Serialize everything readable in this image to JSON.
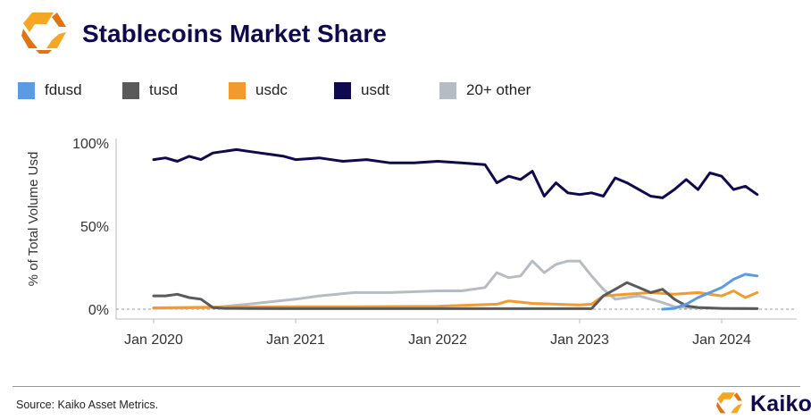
{
  "header": {
    "title": "Stablecoins Market Share",
    "logo_icon": "kaiko-logo-icon"
  },
  "footer": {
    "source": "Source: Kaiko Asset Metrics.",
    "brand": "Kaiko"
  },
  "colors": {
    "fdusd": "#5b9be6",
    "tusd": "#5a5a5a",
    "usdc": "#f39a2e",
    "usdt": "#0e0a4d",
    "other": "#b6bcc3",
    "logo_orange": "#f5a623",
    "logo_dark_orange": "#e27312"
  },
  "chart_data": {
    "type": "line",
    "title": "",
    "xlabel": "",
    "ylabel": "% of Total Volume Usd",
    "x_ticks": [
      "Jan 2020",
      "Jan 2021",
      "Jan 2022",
      "Jan 2023",
      "Jan 2024"
    ],
    "y_ticks": [
      "100%",
      "50%",
      "0%"
    ],
    "ylim": [
      0,
      100
    ],
    "xlim": [
      "2020-01",
      "2024-05"
    ],
    "grid": false,
    "legend_position": "top",
    "series": [
      {
        "name": "fdusd",
        "key": "fdusd",
        "points": [
          [
            "2023-08",
            0
          ],
          [
            "2023-09",
            0.5
          ],
          [
            "2023-10",
            3
          ],
          [
            "2023-11",
            7
          ],
          [
            "2023-12",
            10
          ],
          [
            "2024-01",
            13
          ],
          [
            "2024-02",
            18
          ],
          [
            "2024-03",
            21
          ],
          [
            "2024-04",
            20
          ]
        ]
      },
      {
        "name": "tusd",
        "key": "tusd",
        "points": [
          [
            "2020-01",
            8
          ],
          [
            "2020-02",
            8
          ],
          [
            "2020-03",
            9
          ],
          [
            "2020-04",
            7
          ],
          [
            "2020-05",
            6
          ],
          [
            "2020-06",
            1
          ],
          [
            "2020-07",
            0.5
          ],
          [
            "2020-08",
            0.5
          ],
          [
            "2020-09",
            0.4
          ],
          [
            "2021-01",
            0.3
          ],
          [
            "2021-06",
            0.3
          ],
          [
            "2022-01",
            0.3
          ],
          [
            "2022-06",
            0.3
          ],
          [
            "2022-11",
            0.3
          ],
          [
            "2023-01",
            0.3
          ],
          [
            "2023-02",
            0.3
          ],
          [
            "2023-03",
            8
          ],
          [
            "2023-04",
            12
          ],
          [
            "2023-05",
            16
          ],
          [
            "2023-06",
            13
          ],
          [
            "2023-07",
            10
          ],
          [
            "2023-08",
            12
          ],
          [
            "2023-09",
            6
          ],
          [
            "2023-10",
            2
          ],
          [
            "2023-11",
            1
          ],
          [
            "2024-01",
            0.5
          ],
          [
            "2024-04",
            0.3
          ]
        ]
      },
      {
        "name": "usdc",
        "key": "usdc",
        "points": [
          [
            "2020-01",
            0.8
          ],
          [
            "2020-06",
            1.2
          ],
          [
            "2021-01",
            1.5
          ],
          [
            "2021-06",
            1.5
          ],
          [
            "2022-01",
            1.8
          ],
          [
            "2022-06",
            3
          ],
          [
            "2022-07",
            5
          ],
          [
            "2022-09",
            3.5
          ],
          [
            "2023-01",
            2.5
          ],
          [
            "2023-02",
            3
          ],
          [
            "2023-03",
            8
          ],
          [
            "2023-05",
            9
          ],
          [
            "2023-07",
            10
          ],
          [
            "2023-09",
            9
          ],
          [
            "2023-11",
            10
          ],
          [
            "2024-01",
            8
          ],
          [
            "2024-02",
            11
          ],
          [
            "2024-03",
            7
          ],
          [
            "2024-04",
            10
          ]
        ]
      },
      {
        "name": "usdt",
        "key": "usdt",
        "points": [
          [
            "2020-01",
            90
          ],
          [
            "2020-02",
            91
          ],
          [
            "2020-03",
            89
          ],
          [
            "2020-04",
            92
          ],
          [
            "2020-05",
            90
          ],
          [
            "2020-06",
            94
          ],
          [
            "2020-07",
            95
          ],
          [
            "2020-08",
            96
          ],
          [
            "2020-09",
            95
          ],
          [
            "2020-10",
            94
          ],
          [
            "2020-11",
            93
          ],
          [
            "2020-12",
            92
          ],
          [
            "2021-01",
            90
          ],
          [
            "2021-03",
            91
          ],
          [
            "2021-05",
            89
          ],
          [
            "2021-07",
            90
          ],
          [
            "2021-09",
            88
          ],
          [
            "2021-11",
            88
          ],
          [
            "2022-01",
            89
          ],
          [
            "2022-03",
            88
          ],
          [
            "2022-05",
            87
          ],
          [
            "2022-06",
            76
          ],
          [
            "2022-07",
            80
          ],
          [
            "2022-08",
            78
          ],
          [
            "2022-09",
            83
          ],
          [
            "2022-10",
            68
          ],
          [
            "2022-11",
            76
          ],
          [
            "2022-12",
            70
          ],
          [
            "2023-01",
            69
          ],
          [
            "2023-02",
            70
          ],
          [
            "2023-03",
            68
          ],
          [
            "2023-04",
            79
          ],
          [
            "2023-05",
            76
          ],
          [
            "2023-06",
            72
          ],
          [
            "2023-07",
            68
          ],
          [
            "2023-08",
            67
          ],
          [
            "2023-09",
            72
          ],
          [
            "2023-10",
            78
          ],
          [
            "2023-11",
            72
          ],
          [
            "2023-12",
            82
          ],
          [
            "2024-01",
            80
          ],
          [
            "2024-02",
            72
          ],
          [
            "2024-03",
            74
          ],
          [
            "2024-04",
            69
          ]
        ]
      },
      {
        "name": "20+ other",
        "key": "other",
        "points": [
          [
            "2020-01",
            0.5
          ],
          [
            "2020-06",
            1
          ],
          [
            "2020-09",
            3
          ],
          [
            "2021-01",
            6
          ],
          [
            "2021-03",
            8
          ],
          [
            "2021-06",
            10
          ],
          [
            "2021-09",
            10
          ],
          [
            "2022-01",
            11
          ],
          [
            "2022-03",
            11
          ],
          [
            "2022-05",
            13
          ],
          [
            "2022-06",
            22
          ],
          [
            "2022-07",
            19
          ],
          [
            "2022-08",
            20
          ],
          [
            "2022-09",
            29
          ],
          [
            "2022-10",
            22
          ],
          [
            "2022-11",
            27
          ],
          [
            "2022-12",
            29
          ],
          [
            "2023-01",
            29
          ],
          [
            "2023-02",
            20
          ],
          [
            "2023-03",
            12
          ],
          [
            "2023-04",
            6
          ],
          [
            "2023-05",
            7
          ],
          [
            "2023-06",
            8
          ],
          [
            "2023-07",
            6
          ],
          [
            "2023-08",
            4
          ],
          [
            "2023-09",
            1.5
          ],
          [
            "2023-10",
            1
          ],
          [
            "2024-01",
            0.5
          ],
          [
            "2024-04",
            0.3
          ]
        ]
      }
    ]
  }
}
